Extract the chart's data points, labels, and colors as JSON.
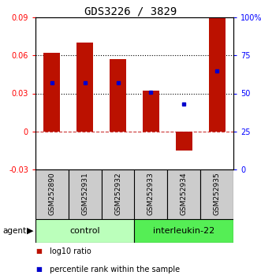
{
  "title": "GDS3226 / 3829",
  "samples": [
    "GSM252890",
    "GSM252931",
    "GSM252932",
    "GSM252933",
    "GSM252934",
    "GSM252935"
  ],
  "log10_ratio": [
    0.062,
    0.07,
    0.057,
    0.032,
    -0.015,
    0.091
  ],
  "percentile_rank": [
    57,
    57,
    57,
    51,
    43,
    65
  ],
  "bar_color": "#bb1100",
  "marker_color": "#0000cc",
  "left_ylim": [
    -0.03,
    0.09
  ],
  "right_ylim": [
    0,
    100
  ],
  "left_yticks": [
    -0.03,
    0,
    0.03,
    0.06,
    0.09
  ],
  "left_yticklabels": [
    "-0.03",
    "0",
    "0.03",
    "0.06",
    "0.09"
  ],
  "right_yticks": [
    0,
    25,
    50,
    75,
    100
  ],
  "right_yticklabels": [
    "0",
    "25",
    "50",
    "75",
    "100%"
  ],
  "dotted_line_y": [
    0.03,
    0.06
  ],
  "zero_line_color": "#cc3333",
  "groups": [
    {
      "label": "control",
      "start": 0,
      "end": 3,
      "color": "#bbffbb"
    },
    {
      "label": "interleukin-22",
      "start": 3,
      "end": 6,
      "color": "#55ee55"
    }
  ],
  "legend_items": [
    {
      "label": " log10 ratio",
      "color": "#bb1100"
    },
    {
      "label": " percentile rank within the sample",
      "color": "#0000cc"
    }
  ],
  "agent_label": "agent",
  "title_fontsize": 10,
  "tick_fontsize": 7,
  "sample_label_fontsize": 6.5,
  "group_label_fontsize": 8,
  "legend_fontsize": 7,
  "bar_width": 0.5,
  "sample_bg": "#cccccc",
  "n_samples": 6,
  "n_control": 3
}
